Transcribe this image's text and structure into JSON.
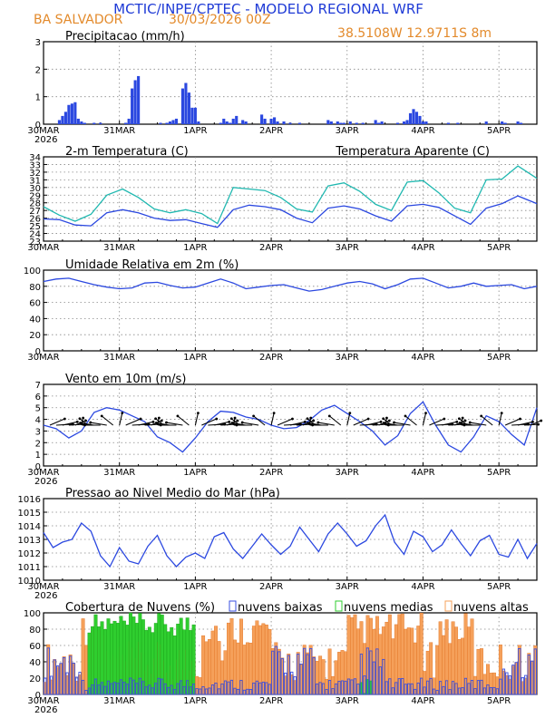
{
  "header": {
    "title": "MCTIC/INPE/CPTEC - MODELO REGIONAL WRF",
    "location": "BA SALVADOR",
    "run": "30/03/2026 00Z",
    "coords": "38.5108W 12.9711S 8m"
  },
  "colors": {
    "title": "#1e3ad6",
    "header_orange": "#e38a2b",
    "line_blue": "#2b48e0",
    "line_teal": "#20b8b0",
    "cloud_low": "#3a4fe0",
    "cloud_mid": "#2fce2f",
    "cloud_high": "#f5a05a"
  },
  "x_axis": {
    "ticks": [
      "30MAR",
      "31MAR",
      "1APR",
      "2APR",
      "3APR",
      "4APR",
      "5APR"
    ],
    "year": "2026",
    "hours_total": 156
  },
  "chart_data": [
    {
      "type": "bar",
      "title": "Precipitacao (mm/h)",
      "ylim": [
        0,
        3
      ],
      "yticks": [
        "0",
        "1",
        "2",
        "3"
      ],
      "x": [
        5,
        6,
        7,
        8,
        9,
        10,
        11,
        12,
        13,
        16,
        18,
        26,
        27,
        28,
        29,
        30,
        37,
        39,
        40,
        41,
        42,
        44,
        45,
        46,
        47,
        48,
        49,
        56,
        57,
        58,
        59,
        60,
        61,
        63,
        64,
        69,
        70,
        72,
        73,
        74,
        76,
        78,
        81,
        90,
        91,
        93,
        94,
        95,
        97,
        99,
        101,
        105,
        106,
        107,
        112,
        114,
        115,
        116,
        117,
        118,
        119,
        120,
        121,
        128,
        131,
        140,
        145,
        146,
        150,
        151
      ],
      "values": [
        0.15,
        0.3,
        0.45,
        0.7,
        0.75,
        0.8,
        0.2,
        0.1,
        0.05,
        0.05,
        0.05,
        0.05,
        0.2,
        1.3,
        1.6,
        1.75,
        0.05,
        0.05,
        0.1,
        0.15,
        0.2,
        1.3,
        1.5,
        1.15,
        0.6,
        0.6,
        0.1,
        0.05,
        0.2,
        0.1,
        0.05,
        0.2,
        0.3,
        0.15,
        0.1,
        0.35,
        0.2,
        0.2,
        0.25,
        0.1,
        0.1,
        0.05,
        0.05,
        0.15,
        0.1,
        0.1,
        0.05,
        0.05,
        0.1,
        0.05,
        0.05,
        0.15,
        0.05,
        0.1,
        0.05,
        0.1,
        0.15,
        0.4,
        0.55,
        0.45,
        0.3,
        0.1,
        0.1,
        0.05,
        0.05,
        0.1,
        0.1,
        0.05,
        0.1,
        0.05
      ]
    },
    {
      "type": "line",
      "title": "2-m Temperatura (C)",
      "legend_right": "Temperatura Aparente (C)",
      "ylim": [
        23,
        34
      ],
      "yticks": [
        "23",
        "24",
        "25",
        "26",
        "27",
        "28",
        "29",
        "30",
        "31",
        "32",
        "33",
        "34"
      ],
      "series": [
        {
          "name": "2-m Temperatura (C)",
          "color": "line_blue",
          "x": [
            0,
            5,
            10,
            15,
            20,
            25,
            30,
            35,
            40,
            45,
            50,
            55,
            60,
            65,
            70,
            75,
            80,
            85,
            90,
            95,
            100,
            105,
            110,
            115,
            120,
            125,
            130,
            135,
            140,
            145,
            150,
            156
          ],
          "values": [
            25.9,
            25.8,
            25.1,
            25.0,
            26.7,
            27.1,
            26.7,
            26.0,
            25.7,
            25.8,
            25.3,
            24.8,
            27.1,
            27.7,
            27.5,
            27.1,
            26.0,
            25.4,
            27.3,
            27.6,
            27.2,
            26.3,
            25.6,
            27.6,
            27.8,
            27.4,
            26.3,
            25.2,
            27.3,
            27.9,
            28.9,
            27.9
          ]
        },
        {
          "name": "Temperatura Aparente (C)",
          "color": "line_teal",
          "x": [
            0,
            5,
            10,
            15,
            20,
            25,
            30,
            35,
            40,
            45,
            50,
            55,
            60,
            65,
            70,
            75,
            80,
            85,
            90,
            95,
            100,
            105,
            110,
            115,
            120,
            125,
            130,
            135,
            140,
            145,
            150,
            156
          ],
          "values": [
            27.5,
            26.4,
            25.6,
            26.5,
            29.0,
            29.8,
            28.7,
            27.2,
            26.7,
            27.1,
            26.6,
            25.3,
            30.0,
            29.8,
            29.6,
            28.7,
            27.2,
            26.8,
            30.2,
            30.6,
            29.5,
            27.8,
            27.0,
            30.7,
            30.9,
            29.3,
            27.3,
            26.7,
            31.0,
            31.1,
            32.8,
            31.2
          ]
        }
      ]
    },
    {
      "type": "line",
      "title": "Umidade Relativa em 2m (%)",
      "ylim": [
        0,
        100
      ],
      "yticks": [
        "0",
        "20",
        "40",
        "60",
        "80",
        "100"
      ],
      "series": [
        {
          "name": "Umidade Relativa em 2m (%)",
          "color": "line_blue",
          "x": [
            0,
            4,
            8,
            12,
            16,
            20,
            24,
            28,
            32,
            36,
            40,
            44,
            48,
            52,
            56,
            60,
            64,
            68,
            72,
            76,
            80,
            84,
            88,
            92,
            96,
            100,
            104,
            108,
            112,
            116,
            120,
            124,
            128,
            132,
            136,
            140,
            144,
            148,
            152,
            156
          ],
          "values": [
            86,
            89,
            90,
            86,
            82,
            79,
            77,
            78,
            84,
            85,
            81,
            78,
            79,
            84,
            89,
            84,
            77,
            79,
            81,
            82,
            78,
            74,
            76,
            80,
            84,
            86,
            83,
            77,
            82,
            89,
            90,
            84,
            78,
            80,
            84,
            80,
            81,
            82,
            77,
            80
          ]
        }
      ]
    },
    {
      "type": "line",
      "title": "Vento em 10m (m/s)",
      "ylim": [
        0,
        7
      ],
      "yticks": [
        "0",
        "1",
        "2",
        "3",
        "4",
        "5",
        "6",
        "7"
      ],
      "series": [
        {
          "name": "Vento em 10m (m/s)",
          "color": "line_blue",
          "x": [
            0,
            4,
            8,
            12,
            16,
            20,
            24,
            28,
            32,
            36,
            40,
            44,
            48,
            52,
            56,
            60,
            64,
            68,
            72,
            76,
            80,
            84,
            88,
            92,
            96,
            100,
            104,
            108,
            112,
            116,
            120,
            124,
            128,
            132,
            136,
            140,
            144,
            148,
            152,
            156
          ],
          "values": [
            3.5,
            3.2,
            2.4,
            3.0,
            4.6,
            5.0,
            4.8,
            4.3,
            3.8,
            2.5,
            2.0,
            1.2,
            2.4,
            3.8,
            4.7,
            4.6,
            4.2,
            4.0,
            3.5,
            3.2,
            3.3,
            3.9,
            4.8,
            5.2,
            4.5,
            3.8,
            3.0,
            1.8,
            2.6,
            4.5,
            5.5,
            3.5,
            1.8,
            1.2,
            2.5,
            4.3,
            3.8,
            2.7,
            1.8,
            5.0
          ]
        }
      ],
      "barbs": "vento_dir"
    },
    {
      "type": "line",
      "title": "Pressao ao Nivel Medio do Mar (hPa)",
      "ylim": [
        1010,
        1016
      ],
      "yticks": [
        "1010",
        "1011",
        "1012",
        "1013",
        "1014",
        "1015",
        "1016"
      ],
      "series": [
        {
          "name": "Pressao ao Nivel Medio do Mar (hPa)",
          "color": "line_blue",
          "x": [
            0,
            3,
            6,
            9,
            12,
            15,
            18,
            21,
            24,
            27,
            30,
            33,
            36,
            39,
            42,
            45,
            48,
            51,
            54,
            57,
            60,
            63,
            66,
            69,
            72,
            75,
            78,
            81,
            84,
            87,
            90,
            93,
            96,
            99,
            102,
            105,
            108,
            111,
            114,
            117,
            120,
            123,
            126,
            129,
            132,
            135,
            138,
            141,
            144,
            147,
            150,
            153,
            156
          ],
          "values": [
            1013.5,
            1012.4,
            1012.8,
            1013.0,
            1014.2,
            1013.6,
            1011.8,
            1011.0,
            1012.4,
            1011.4,
            1011.2,
            1012.5,
            1013.3,
            1011.8,
            1011.0,
            1011.7,
            1012.0,
            1011.6,
            1013.2,
            1013.5,
            1012.3,
            1011.6,
            1012.5,
            1013.4,
            1012.6,
            1011.9,
            1012.5,
            1013.9,
            1013.0,
            1012.1,
            1013.4,
            1014.2,
            1013.4,
            1012.5,
            1012.9,
            1014.0,
            1014.8,
            1012.8,
            1011.9,
            1013.6,
            1013.2,
            1012.1,
            1012.6,
            1013.7,
            1012.7,
            1011.8,
            1012.9,
            1013.3,
            1011.9,
            1011.7,
            1013.0,
            1011.6,
            1012.7
          ]
        }
      ]
    },
    {
      "type": "bar",
      "title": "Cobertura de Nuvens (%)",
      "legend": [
        "nuvens baixas",
        "nuvens medias",
        "nuvens altas"
      ],
      "ylim": [
        0,
        100
      ],
      "yticks": [
        "0",
        "20",
        "40",
        "60",
        "80",
        "100"
      ],
      "series_note": "per-hour bars: low (blue outline), medium (green), high (orange)"
    }
  ],
  "vento_dir": {
    "note": "wind barb arrows drawn every 2h along the top band of the wind panel"
  }
}
